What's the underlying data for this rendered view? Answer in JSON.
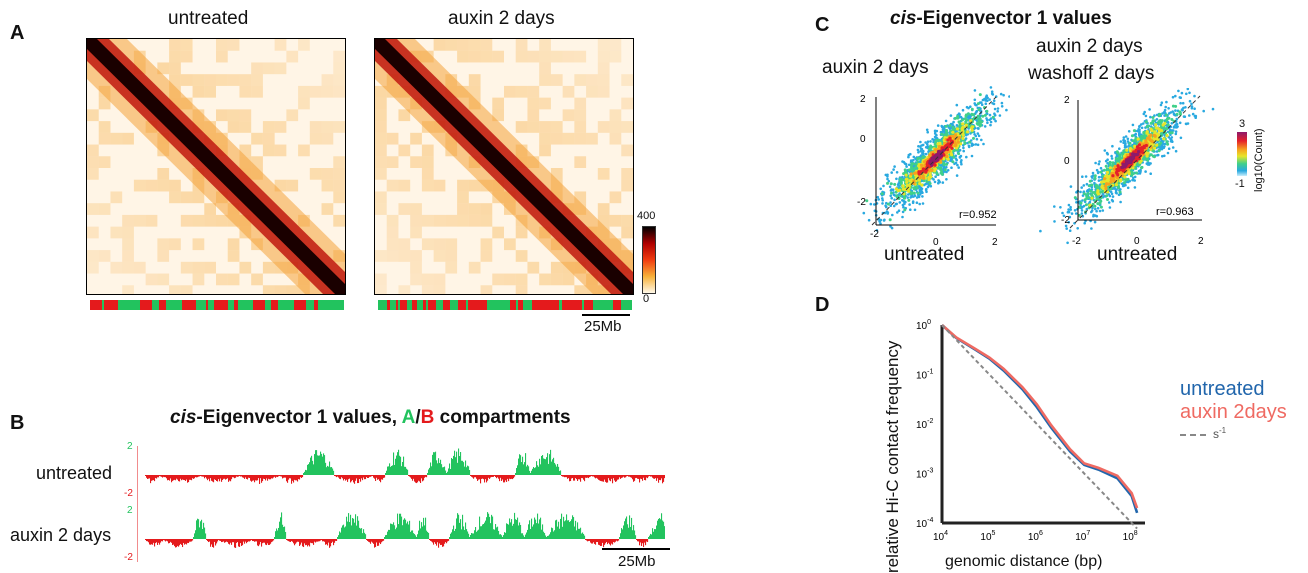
{
  "panel_a": {
    "letter": "A",
    "maps": [
      {
        "title": "untreated"
      },
      {
        "title": "auxin 2 days"
      }
    ],
    "colorbar": {
      "max_label": "400",
      "min_label": "0"
    },
    "scalebar_label": "25Mb"
  },
  "panel_b": {
    "letter": "B",
    "title_prefix": "cis",
    "title_main": "-Eigenvector 1 values, ",
    "title_a": "A",
    "title_slash": "/",
    "title_b": "B",
    "title_suffix": " compartments",
    "tracks": [
      {
        "label": "untreated",
        "ymax": "2",
        "ymin": "-2"
      },
      {
        "label": "auxin 2 days",
        "ymax": "2",
        "ymin": "-2"
      }
    ],
    "scalebar_label": "25Mb",
    "colors": {
      "A": "#22c35e",
      "B": "#e41a1c"
    }
  },
  "panel_c": {
    "letter": "C",
    "title_prefix": "cis",
    "title_main": "-Eigenvector 1 values",
    "plots": [
      {
        "ylabel_lines": [
          "auxin 2 days"
        ],
        "xlabel": "untreated",
        "r": "r=0.952",
        "yticks": [
          "2",
          "0",
          "-2"
        ],
        "xticks": [
          "-2",
          "0",
          "2"
        ]
      },
      {
        "ylabel_lines": [
          "auxin 2 days",
          "washoff 2 days"
        ],
        "xlabel": "untreated",
        "r": "r=0.963",
        "yticks": [
          "2",
          "0",
          "-2"
        ],
        "xticks": [
          "-2",
          "0",
          "2"
        ]
      }
    ],
    "colorbar": {
      "max_label": "3",
      "min_label": "-1",
      "label": "log10(Count)"
    }
  },
  "panel_d": {
    "letter": "D",
    "chart_data": {
      "type": "line",
      "xlabel": "genomic distance (bp)",
      "ylabel": "relative Hi-C contact frequency",
      "xscale": "log",
      "yscale": "log",
      "xlim": [
        10000,
        150000000
      ],
      "ylim": [
        0.0001,
        1
      ],
      "xtick_labels": [
        "10^4",
        "10^5",
        "10^6",
        "10^7",
        "10^8"
      ],
      "ytick_labels": [
        "10^0",
        "10^-1",
        "10^-2",
        "10^-3",
        "10^-4"
      ],
      "x": [
        10000,
        20000,
        50000,
        100000,
        200000,
        500000,
        1000000,
        2000000,
        5000000,
        10000000,
        20000000,
        50000000,
        100000000,
        130000000
      ],
      "series": [
        {
          "name": "untreated",
          "color": "#2166ac",
          "values": [
            1,
            0.55,
            0.32,
            0.21,
            0.12,
            0.05,
            0.022,
            0.0085,
            0.0028,
            0.0015,
            0.0012,
            0.0008,
            0.00035,
            0.00016
          ]
        },
        {
          "name": "auxin 2days",
          "color": "#ef6a62",
          "values": [
            1,
            0.56,
            0.33,
            0.22,
            0.13,
            0.055,
            0.025,
            0.0095,
            0.0031,
            0.0016,
            0.0013,
            0.0009,
            0.0004,
            0.0002
          ]
        },
        {
          "name": "s",
          "color": "#888888",
          "dashed": true,
          "values": [
            1,
            0.5,
            0.2,
            0.1,
            0.05,
            0.02,
            0.01,
            0.005,
            0.002,
            0.001,
            0.0005,
            0.0002,
            0.0001,
            7.7e-05
          ]
        }
      ],
      "legend": {
        "position": "right",
        "s_label": "s",
        "s_exponent": "-1"
      }
    }
  }
}
